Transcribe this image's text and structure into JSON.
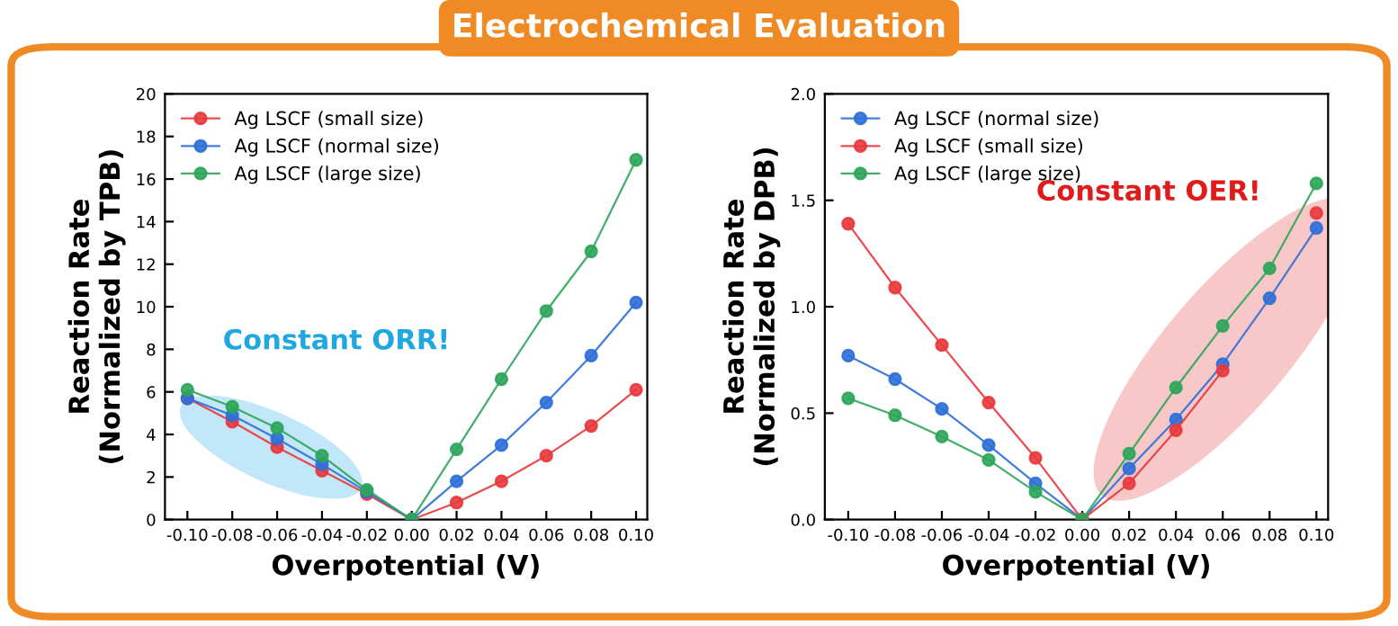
{
  "chart_data": [
    {
      "type": "line",
      "title": "Electrochemical Evaluation",
      "xlabel": "Overpotential (V)",
      "ylabel": "Reaction Rate\n(Normalized by TPB)",
      "x": [
        -0.1,
        -0.08,
        -0.06,
        -0.04,
        -0.02,
        0,
        0.02,
        0.04,
        0.06,
        0.08,
        0.1
      ],
      "series": [
        {
          "name": "Ag LSCF (small size)",
          "color": "#e8383d",
          "values": [
            5.7,
            4.6,
            3.4,
            2.3,
            1.2,
            0,
            0.8,
            1.8,
            3.0,
            4.4,
            6.1
          ]
        },
        {
          "name": "Ag LSCF (normal size)",
          "color": "#2f6fd8",
          "values": [
            5.7,
            4.9,
            3.8,
            2.6,
            1.3,
            0,
            1.8,
            3.5,
            5.5,
            7.7,
            10.2
          ]
        },
        {
          "name": "Ag LSCF (large size)",
          "color": "#2ea55a",
          "values": [
            6.1,
            5.3,
            4.3,
            3.0,
            1.4,
            0,
            3.3,
            6.6,
            9.8,
            12.6,
            16.9
          ]
        }
      ],
      "annotations": [
        "Constant ORR!"
      ],
      "xlim": [
        -0.11,
        0.105
      ],
      "xticks": [
        {
          "value": -0.1,
          "label": "-0.10"
        },
        {
          "value": -0.08,
          "label": "-0.08"
        },
        {
          "value": -0.06,
          "label": "-0.06"
        },
        {
          "value": -0.04,
          "label": "-0.04"
        },
        {
          "value": -0.02,
          "label": "-0.02"
        },
        {
          "value": 0,
          "label": "0.00"
        },
        {
          "value": 0.02,
          "label": "0.02"
        },
        {
          "value": 0.04,
          "label": "0.04"
        },
        {
          "value": 0.06,
          "label": "0.06"
        },
        {
          "value": 0.08,
          "label": "0.08"
        },
        {
          "value": 0.1,
          "label": "0.10"
        }
      ],
      "ylim": [
        0,
        20
      ],
      "yticks": [
        0,
        2,
        4,
        6,
        8,
        10,
        12,
        14,
        16,
        18,
        20
      ],
      "marker": "circle",
      "line_style": "solid",
      "legend": "top left",
      "grid": false
    },
    {
      "type": "line",
      "xlabel": "Overpotential (V)",
      "ylabel": "Reaction Rate\n(Normalized by DPB)",
      "x": [
        -0.1,
        -0.08,
        -0.06,
        -0.04,
        -0.02,
        0,
        0.02,
        0.04,
        0.06,
        0.08,
        0.1
      ],
      "series": [
        {
          "name": "Ag LSCF (normal size)",
          "color": "#2f6fd8",
          "values": [
            0.77,
            0.66,
            0.52,
            0.35,
            0.17,
            0,
            0.24,
            0.47,
            0.73,
            1.04,
            1.37
          ]
        },
        {
          "name": "Ag LSCF (small size)",
          "color": "#e8383d",
          "values": [
            1.39,
            1.09,
            0.82,
            0.55,
            0.29,
            0,
            0.17,
            0.42,
            0.7,
            null,
            1.44
          ]
        },
        {
          "name": "Ag LSCF (large size)",
          "color": "#2ea55a",
          "values": [
            0.57,
            0.49,
            0.39,
            0.28,
            0.13,
            0,
            0.31,
            0.62,
            0.91,
            1.18,
            1.58
          ]
        }
      ],
      "annotations": [
        "Constant OER!"
      ],
      "xlim": [
        -0.11,
        0.105
      ],
      "xticks": [
        {
          "value": -0.1,
          "label": "-0.10"
        },
        {
          "value": -0.08,
          "label": "-0.08"
        },
        {
          "value": -0.06,
          "label": "-0.06"
        },
        {
          "value": -0.04,
          "label": "-0.04"
        },
        {
          "value": -0.02,
          "label": "-0.02"
        },
        {
          "value": 0,
          "label": "0.00"
        },
        {
          "value": 0.02,
          "label": "0.02"
        },
        {
          "value": 0.04,
          "label": "0.04"
        },
        {
          "value": 0.06,
          "label": "0.06"
        },
        {
          "value": 0.08,
          "label": "0.08"
        },
        {
          "value": 0.1,
          "label": "0.10"
        }
      ],
      "ylim": [
        0,
        2.0
      ],
      "yticks": [
        {
          "value": 0,
          "label": "0.0"
        },
        {
          "value": 0.5,
          "label": "0.5"
        },
        {
          "value": 1.0,
          "label": "1.0"
        },
        {
          "value": 1.5,
          "label": "1.5"
        },
        {
          "value": 2.0,
          "label": "2.0"
        }
      ],
      "marker": "circle",
      "line_style": "solid",
      "legend": "top left",
      "grid": false
    }
  ]
}
